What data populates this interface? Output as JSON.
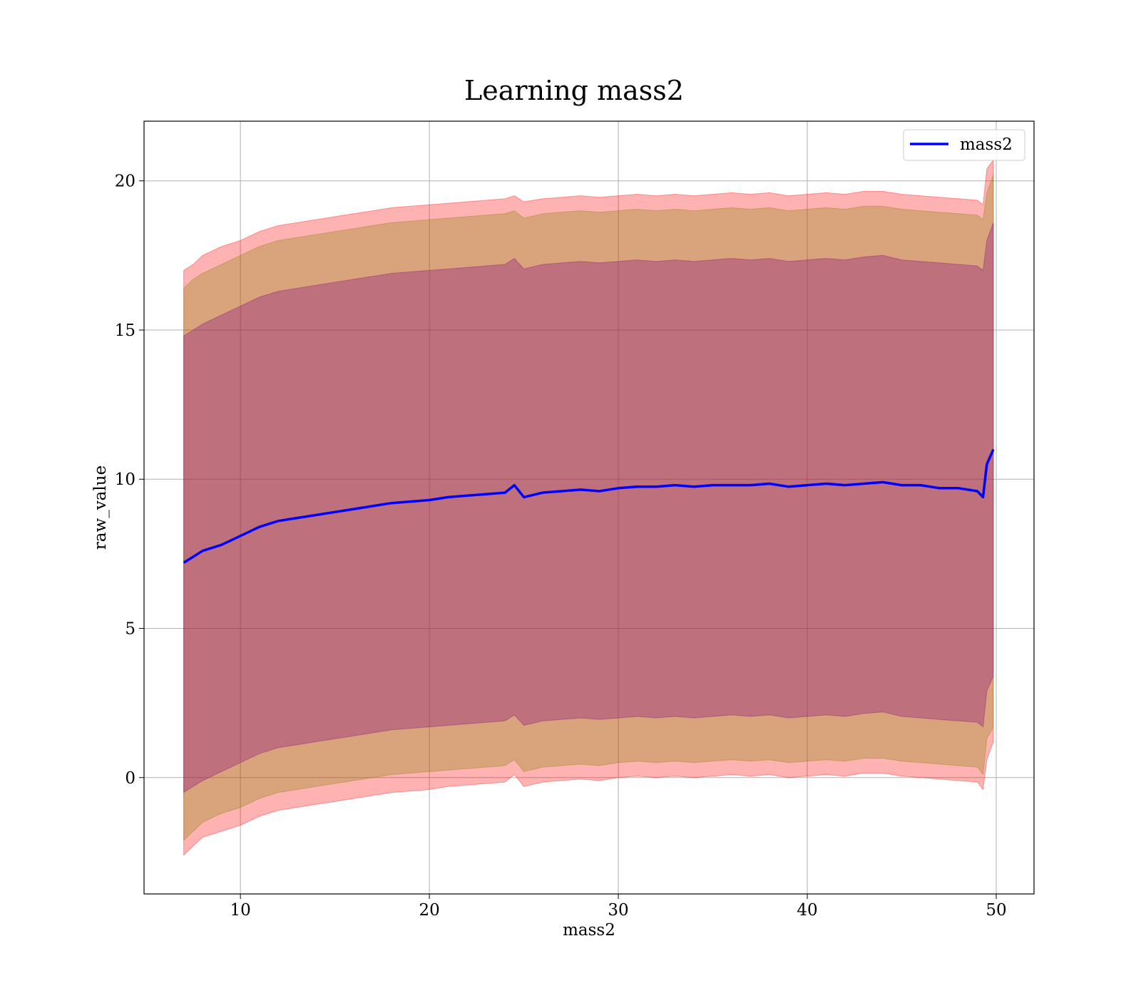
{
  "chart_data": {
    "type": "line",
    "title": "Learning mass2",
    "xlabel": "mass2",
    "ylabel": "raw_value",
    "xlim": [
      4.9,
      52.0
    ],
    "ylim": [
      -3.9,
      22.0
    ],
    "xticks": [
      10,
      20,
      30,
      40,
      50
    ],
    "yticks": [
      0,
      5,
      10,
      15,
      20
    ],
    "grid": true,
    "legend": {
      "placement": "top-right",
      "entries": [
        "mass2"
      ]
    },
    "series": [
      {
        "name": "mass2",
        "color": "#0000ff",
        "x": [
          7.0,
          7.5,
          8.0,
          9.0,
          10.0,
          11.0,
          12.0,
          13.0,
          14.0,
          15.0,
          16.0,
          17.0,
          18.0,
          19.0,
          20.0,
          21.0,
          22.0,
          23.0,
          24.0,
          24.5,
          25.0,
          26.0,
          27.0,
          28.0,
          29.0,
          30.0,
          31.0,
          32.0,
          33.0,
          34.0,
          35.0,
          36.0,
          37.0,
          38.0,
          39.0,
          40.0,
          41.0,
          42.0,
          43.0,
          44.0,
          45.0,
          46.0,
          47.0,
          48.0,
          49.0,
          49.3,
          49.5,
          49.85
        ],
        "y": [
          7.2,
          7.4,
          7.6,
          7.8,
          8.1,
          8.4,
          8.6,
          8.7,
          8.8,
          8.9,
          9.0,
          9.1,
          9.2,
          9.25,
          9.3,
          9.4,
          9.45,
          9.5,
          9.55,
          9.8,
          9.4,
          9.55,
          9.6,
          9.65,
          9.6,
          9.7,
          9.75,
          9.75,
          9.8,
          9.75,
          9.8,
          9.8,
          9.8,
          9.85,
          9.75,
          9.8,
          9.85,
          9.8,
          9.85,
          9.9,
          9.8,
          9.8,
          9.7,
          9.7,
          9.6,
          9.4,
          10.5,
          11.0
        ]
      }
    ],
    "bands": [
      {
        "color": "#ff0000",
        "upper": [
          17.0,
          17.2,
          17.5,
          17.8,
          18.0,
          18.3,
          18.5,
          18.6,
          18.7,
          18.8,
          18.9,
          19.0,
          19.1,
          19.15,
          19.2,
          19.25,
          19.3,
          19.35,
          19.4,
          19.5,
          19.3,
          19.4,
          19.45,
          19.5,
          19.45,
          19.5,
          19.55,
          19.5,
          19.55,
          19.5,
          19.55,
          19.6,
          19.55,
          19.6,
          19.5,
          19.55,
          19.6,
          19.55,
          19.65,
          19.65,
          19.55,
          19.5,
          19.45,
          19.4,
          19.35,
          19.2,
          20.4,
          20.7
        ],
        "lower": [
          -2.6,
          -2.3,
          -2.0,
          -1.8,
          -1.6,
          -1.3,
          -1.1,
          -1.0,
          -0.9,
          -0.8,
          -0.7,
          -0.6,
          -0.5,
          -0.45,
          -0.4,
          -0.3,
          -0.25,
          -0.2,
          -0.15,
          0.1,
          -0.3,
          -0.15,
          -0.1,
          -0.05,
          -0.1,
          0.0,
          0.05,
          0.0,
          0.05,
          0.0,
          0.05,
          0.1,
          0.05,
          0.1,
          0.0,
          0.05,
          0.1,
          0.05,
          0.15,
          0.15,
          0.05,
          0.0,
          -0.05,
          -0.1,
          -0.15,
          -0.4,
          0.6,
          1.2
        ]
      },
      {
        "color": "#808000",
        "upper": [
          16.4,
          16.7,
          16.9,
          17.2,
          17.5,
          17.8,
          18.0,
          18.1,
          18.2,
          18.3,
          18.4,
          18.5,
          18.6,
          18.65,
          18.7,
          18.75,
          18.8,
          18.85,
          18.9,
          19.0,
          18.75,
          18.9,
          18.95,
          19.0,
          18.95,
          19.0,
          19.05,
          19.0,
          19.05,
          19.0,
          19.05,
          19.1,
          19.05,
          19.1,
          19.0,
          19.05,
          19.1,
          19.05,
          19.15,
          19.15,
          19.05,
          19.0,
          18.95,
          18.9,
          18.85,
          18.7,
          19.6,
          20.2
        ],
        "lower": [
          -2.1,
          -1.8,
          -1.5,
          -1.2,
          -1.0,
          -0.7,
          -0.5,
          -0.4,
          -0.3,
          -0.2,
          -0.1,
          0.0,
          0.1,
          0.15,
          0.2,
          0.25,
          0.3,
          0.35,
          0.4,
          0.6,
          0.2,
          0.35,
          0.4,
          0.45,
          0.4,
          0.5,
          0.55,
          0.5,
          0.55,
          0.5,
          0.55,
          0.6,
          0.55,
          0.6,
          0.5,
          0.55,
          0.6,
          0.55,
          0.65,
          0.65,
          0.55,
          0.5,
          0.45,
          0.4,
          0.35,
          0.1,
          1.3,
          1.7
        ]
      },
      {
        "color": "#800080",
        "upper": [
          14.8,
          15.0,
          15.2,
          15.5,
          15.8,
          16.1,
          16.3,
          16.4,
          16.5,
          16.6,
          16.7,
          16.8,
          16.9,
          16.95,
          17.0,
          17.05,
          17.1,
          17.15,
          17.2,
          17.4,
          17.05,
          17.2,
          17.25,
          17.3,
          17.25,
          17.3,
          17.35,
          17.3,
          17.35,
          17.3,
          17.35,
          17.4,
          17.35,
          17.4,
          17.3,
          17.35,
          17.4,
          17.35,
          17.45,
          17.5,
          17.35,
          17.3,
          17.25,
          17.2,
          17.15,
          17.0,
          18.0,
          18.6
        ],
        "lower": [
          -0.5,
          -0.3,
          -0.1,
          0.2,
          0.5,
          0.8,
          1.0,
          1.1,
          1.2,
          1.3,
          1.4,
          1.5,
          1.6,
          1.65,
          1.7,
          1.75,
          1.8,
          1.85,
          1.9,
          2.1,
          1.75,
          1.9,
          1.95,
          2.0,
          1.95,
          2.0,
          2.05,
          2.0,
          2.05,
          2.0,
          2.05,
          2.1,
          2.05,
          2.1,
          2.0,
          2.05,
          2.1,
          2.05,
          2.15,
          2.2,
          2.05,
          2.0,
          1.95,
          1.9,
          1.85,
          1.7,
          2.9,
          3.4
        ]
      }
    ]
  }
}
